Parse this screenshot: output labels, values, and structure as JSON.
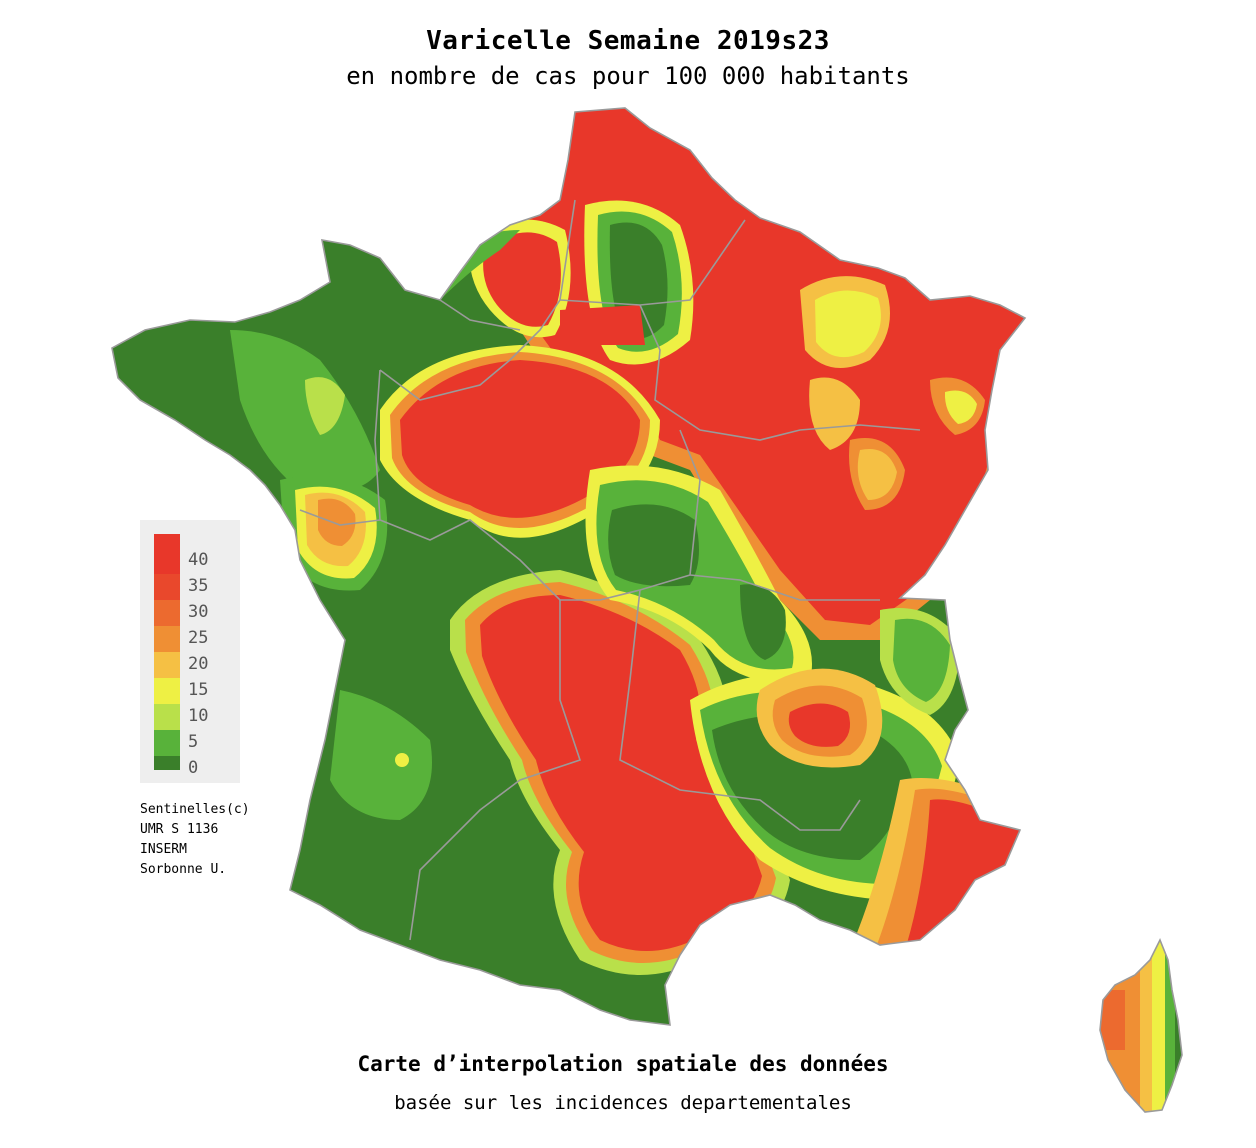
{
  "map": {
    "title": "Varicelle Semaine 2019s23",
    "subtitle": "en nombre de cas pour 100 000 habitants",
    "footer_title": "Carte d’interpolation spatiale des données",
    "footer_subtitle": "basée sur les incidences departementales",
    "credits": [
      "Sentinelles(c)",
      "UMR S 1136",
      "INSERM",
      "Sorbonne U."
    ]
  },
  "legend": {
    "ticks": [
      "40",
      "35",
      "30",
      "25",
      "20",
      "15",
      "10",
      "5",
      "0"
    ],
    "colors": [
      "#e8372a",
      "#e9482c",
      "#ec6a2f",
      "#ef8f34",
      "#f5c044",
      "#eef044",
      "#b9e04a",
      "#58b23a",
      "#3a7f2a"
    ]
  },
  "palette": {
    "high": "#e8372a",
    "orange": "#ef8f34",
    "yellow": "#f5c044",
    "light_yellow": "#eef044",
    "light_green": "#b9e04a",
    "green": "#58b23a",
    "dark_green": "#3a7f2a",
    "border": "#9a9a9a"
  }
}
